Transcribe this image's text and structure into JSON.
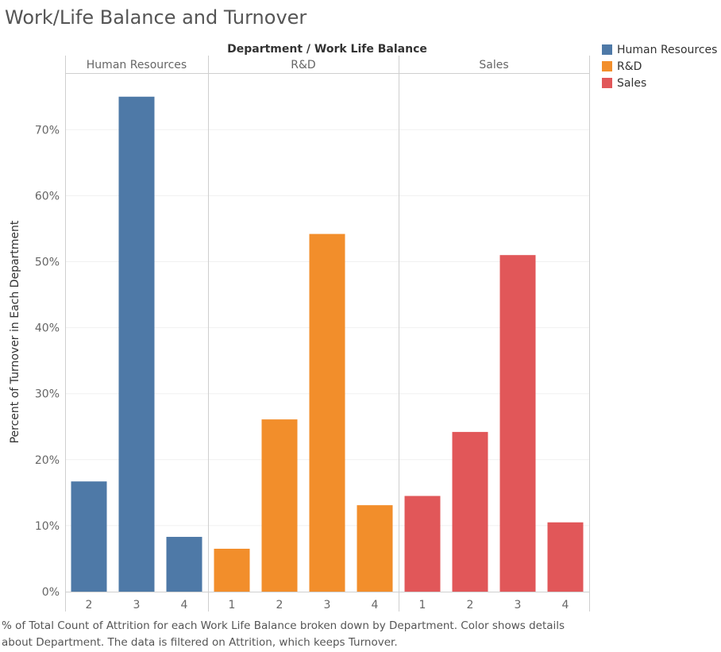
{
  "title": "Work/Life Balance and Turnover",
  "caption": "% of Total Count of Attrition for each Work Life Balance broken down by Department.  Color shows details about Department. The data is filtered on Attrition, which keeps Turnover.",
  "chart_data": {
    "type": "bar",
    "header": "Department  /  Work Life Balance",
    "ylabel": "Percent of Turnover in Each Department",
    "ylim": [
      0,
      80
    ],
    "yticks": [
      0,
      10,
      20,
      30,
      40,
      50,
      60,
      70
    ],
    "ytick_labels": [
      "0%",
      "10%",
      "20%",
      "30%",
      "40%",
      "50%",
      "60%",
      "70%"
    ],
    "grid": true,
    "legend_position": "right",
    "panels": [
      {
        "name": "Human Resources",
        "color": "#4e79a7",
        "categories": [
          "2",
          "3",
          "4"
        ],
        "values": [
          16.7,
          75.0,
          8.3
        ]
      },
      {
        "name": "R&D",
        "color": "#f28e2b",
        "categories": [
          "1",
          "2",
          "3",
          "4"
        ],
        "values": [
          6.5,
          26.1,
          54.2,
          13.1
        ]
      },
      {
        "name": "Sales",
        "color": "#e15759",
        "categories": [
          "1",
          "2",
          "3",
          "4"
        ],
        "values": [
          14.5,
          24.2,
          51.0,
          10.5
        ]
      }
    ],
    "legend": [
      {
        "name": "Human Resources",
        "color": "#4e79a7"
      },
      {
        "name": "R&D",
        "color": "#f28e2b"
      },
      {
        "name": "Sales",
        "color": "#e15759"
      }
    ]
  }
}
